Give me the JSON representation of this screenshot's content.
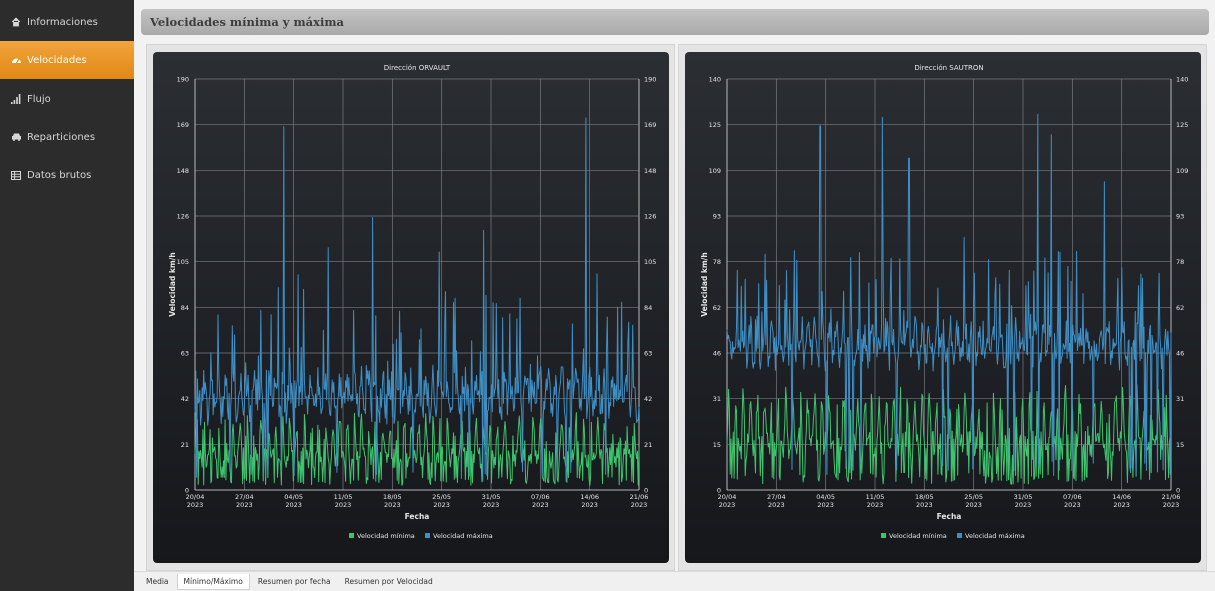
{
  "sidebar": {
    "items": [
      {
        "label": "Informaciones",
        "icon": "home-icon",
        "active": false
      },
      {
        "label": "Velocidades",
        "icon": "speedometer-icon",
        "active": true
      },
      {
        "label": "Flujo",
        "icon": "signal-bars-icon",
        "active": false
      },
      {
        "label": "Reparticiones",
        "icon": "car-icon",
        "active": false
      },
      {
        "label": "Datos brutos",
        "icon": "table-icon",
        "active": false
      }
    ]
  },
  "header": {
    "title": "Velocidades mínima y máxima"
  },
  "tabs": [
    {
      "label": "Media",
      "active": false
    },
    {
      "label": "Mínimo/Máximo",
      "active": true
    },
    {
      "label": "Resumen por fecha",
      "active": false
    },
    {
      "label": "Resumen por Velocidad",
      "active": false
    }
  ],
  "colors": {
    "min_series": "#3ec46d",
    "max_series": "#3f8fc4",
    "grid": "#777a80",
    "axis_text": "#e6e6e6"
  },
  "chart_data": [
    {
      "type": "line",
      "title": "Dirección ORVAULT",
      "xlabel": "Fecha",
      "ylabel": "Velocidad km/h",
      "x_ticks": [
        "20/04 2023",
        "27/04 2023",
        "04/05 2023",
        "11/05 2023",
        "18/05 2023",
        "25/05 2023",
        "31/05 2023",
        "07/06 2023",
        "14/06 2023",
        "21/06 2023"
      ],
      "y_ticks": [
        "0",
        "21",
        "42",
        "63",
        "84",
        "105",
        "126",
        "148",
        "169",
        "190"
      ],
      "ylim": [
        0,
        190
      ],
      "grid": true,
      "legend": "bottom",
      "series": [
        {
          "name": "Velocidad mínima",
          "color": "#3ec46d",
          "base": 20,
          "spread": 10,
          "peaks": []
        },
        {
          "name": "Velocidad máxima",
          "color": "#3f8fc4",
          "base": 44,
          "spread": 12,
          "peaks": [
            [
              0.2,
              168
            ],
            [
              0.3,
              112
            ],
            [
              0.4,
              126
            ],
            [
              0.55,
              110
            ],
            [
              0.65,
              120
            ],
            [
              0.88,
              172
            ]
          ]
        }
      ]
    },
    {
      "type": "line",
      "title": "Dirección SAUTRON",
      "xlabel": "Fecha",
      "ylabel": "Velocidad km/h",
      "x_ticks": [
        "20/04 2023",
        "27/04 2023",
        "04/05 2023",
        "11/05 2023",
        "18/05 2023",
        "25/05 2023",
        "31/05 2023",
        "07/06 2023",
        "14/06 2023",
        "21/06 2023"
      ],
      "y_ticks": [
        "0",
        "15",
        "31",
        "46",
        "62",
        "78",
        "93",
        "109",
        "125",
        "140"
      ],
      "ylim": [
        0,
        140
      ],
      "grid": true,
      "legend": "bottom",
      "series": [
        {
          "name": "Velocidad mínima",
          "color": "#3ec46d",
          "base": 20,
          "spread": 10,
          "peaks": []
        },
        {
          "name": "Velocidad máxima",
          "color": "#3f8fc4",
          "base": 50,
          "spread": 8,
          "peaks": [
            [
              0.21,
              124
            ],
            [
              0.35,
              127
            ],
            [
              0.41,
              113
            ],
            [
              0.7,
              128
            ],
            [
              0.73,
              121
            ],
            [
              0.85,
              105
            ]
          ]
        }
      ]
    }
  ]
}
